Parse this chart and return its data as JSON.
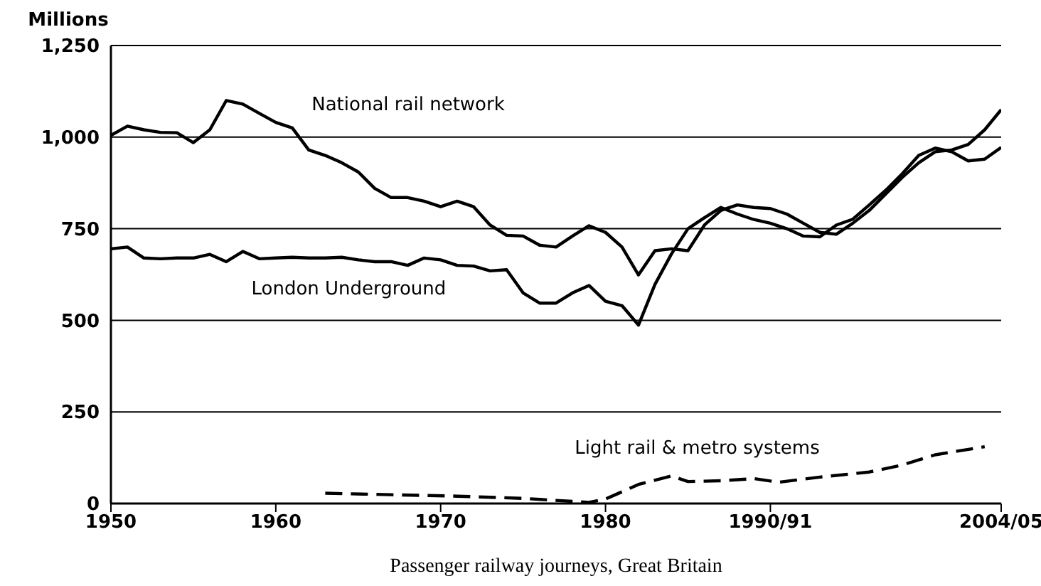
{
  "chart_data": {
    "type": "line",
    "ylabel": "Millions",
    "xlabel": "Passenger railway journeys, Great Britain",
    "xlim": [
      1950,
      2004
    ],
    "xticks": [
      1950,
      1960,
      1970,
      1980,
      {
        "value": 1990,
        "label": "1990/91"
      },
      {
        "value": 2004,
        "label": "2004/05"
      }
    ],
    "ylim": [
      0,
      1250
    ],
    "yticks": [
      0,
      250,
      500,
      750,
      {
        "value": 1000,
        "label": "1,000"
      },
      {
        "value": 1250,
        "label": "1,250"
      }
    ],
    "grid": "y",
    "marker": "none",
    "series": [
      {
        "name": "National rail network",
        "color": "#000000",
        "line_style": "solid",
        "x": [
          1950,
          1951,
          1952,
          1953,
          1954,
          1955,
          1956,
          1957,
          1958,
          1959,
          1960,
          1961,
          1962,
          1963,
          1964,
          1965,
          1966,
          1967,
          1968,
          1969,
          1970,
          1971,
          1972,
          1973,
          1974,
          1975,
          1976,
          1977,
          1978,
          1979,
          1980,
          1981,
          1982,
          1983,
          1984,
          1985,
          1986,
          1987,
          1988,
          1989,
          1990,
          1991,
          1992,
          1993,
          1994,
          1995,
          1996,
          1997,
          1998,
          1999,
          2000,
          2001,
          2002,
          2003,
          2004
        ],
        "values": [
          1005,
          1030,
          1020,
          1013,
          1012,
          985,
          1020,
          1100,
          1090,
          1065,
          1040,
          1025,
          965,
          950,
          930,
          905,
          860,
          835,
          835,
          825,
          810,
          825,
          810,
          760,
          732,
          730,
          705,
          700,
          730,
          758,
          740,
          700,
          624,
          690,
          695,
          690,
          760,
          800,
          815,
          808,
          805,
          790,
          765,
          740,
          735,
          765,
          800,
          845,
          890,
          930,
          960,
          965,
          980,
          1020,
          1075
        ]
      },
      {
        "name": "London Underground",
        "color": "#000000",
        "line_style": "solid",
        "x": [
          1950,
          1951,
          1952,
          1953,
          1954,
          1955,
          1956,
          1957,
          1958,
          1959,
          1960,
          1961,
          1962,
          1963,
          1964,
          1965,
          1966,
          1967,
          1968,
          1969,
          1970,
          1971,
          1972,
          1973,
          1974,
          1975,
          1976,
          1977,
          1978,
          1979,
          1980,
          1981,
          1982,
          1983,
          1984,
          1985,
          1986,
          1987,
          1988,
          1989,
          1990,
          1991,
          1992,
          1993,
          1994,
          1995,
          1996,
          1997,
          1998,
          1999,
          2000,
          2001,
          2002,
          2003,
          2004
        ],
        "values": [
          695,
          700,
          670,
          668,
          670,
          670,
          680,
          660,
          688,
          668,
          670,
          672,
          670,
          670,
          672,
          665,
          660,
          660,
          650,
          670,
          665,
          650,
          648,
          635,
          638,
          575,
          547,
          547,
          575,
          595,
          552,
          540,
          487,
          598,
          681,
          750,
          780,
          808,
          790,
          775,
          765,
          750,
          730,
          728,
          760,
          776,
          815,
          855,
          900,
          950,
          970,
          960,
          935,
          940,
          972
        ]
      },
      {
        "name": "Light rail & metro systems",
        "color": "#000000",
        "line_style": "dashed",
        "x": [
          1963,
          1967,
          1971,
          1975,
          1979,
          1980,
          1982,
          1984,
          1985,
          1987,
          1989,
          1990.5,
          1993,
          1996,
          1998,
          2000,
          2003
        ],
        "values": [
          28,
          24,
          20,
          14,
          3,
          12,
          52,
          75,
          60,
          62,
          68,
          58,
          72,
          86,
          105,
          133,
          155
        ]
      }
    ]
  }
}
